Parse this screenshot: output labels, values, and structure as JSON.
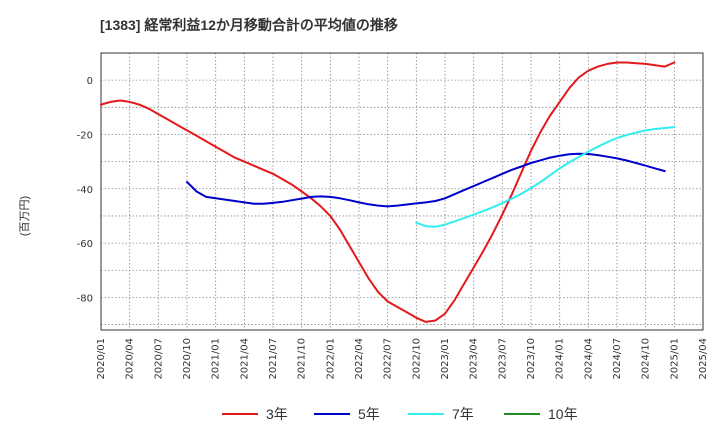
{
  "title": "[1383]  経常利益12か月移動合計の平均値の推移",
  "y_unit": "(百万円)",
  "colors": {
    "3y": "#e31a1c",
    "5y": "#0000cc",
    "7y": "#33eeee",
    "10y": "#228b22",
    "grid": "#888888",
    "frame": "#333333"
  },
  "chart_data": {
    "type": "line",
    "title": "[1383]  経常利益12か月移動合計の平均値の推移",
    "ylabel": "(百万円)",
    "xlabel": "",
    "ylim": [
      -92,
      10
    ],
    "xlim": [
      "2020-01",
      "2025-04"
    ],
    "yticks": [
      0,
      -20,
      -40,
      -60,
      -80
    ],
    "xticks": [
      "2020/01",
      "2020/04",
      "2020/07",
      "2020/10",
      "2021/01",
      "2021/04",
      "2021/07",
      "2021/10",
      "2022/01",
      "2022/04",
      "2022/07",
      "2022/10",
      "2023/01",
      "2023/04",
      "2023/07",
      "2023/10",
      "2024/01",
      "2024/04",
      "2024/07",
      "2024/10",
      "2025/01",
      "2025/04"
    ],
    "grid": true,
    "legend_position": "bottom",
    "series": [
      {
        "name": "3年",
        "color": "#e31a1c",
        "points": [
          [
            "2020-01",
            -9
          ],
          [
            "2020-02",
            -8
          ],
          [
            "2020-03",
            -7.5
          ],
          [
            "2020-04",
            -8
          ],
          [
            "2020-05",
            -9
          ],
          [
            "2020-06",
            -10.5
          ],
          [
            "2020-07",
            -12.5
          ],
          [
            "2020-08",
            -14.5
          ],
          [
            "2020-09",
            -16.5
          ],
          [
            "2020-10",
            -18.5
          ],
          [
            "2020-11",
            -20.5
          ],
          [
            "2020-12",
            -22.5
          ],
          [
            "2021-01",
            -24.5
          ],
          [
            "2021-02",
            -26.5
          ],
          [
            "2021-03",
            -28.5
          ],
          [
            "2021-04",
            -30
          ],
          [
            "2021-05",
            -31.5
          ],
          [
            "2021-06",
            -33
          ],
          [
            "2021-07",
            -34.5
          ],
          [
            "2021-08",
            -36.5
          ],
          [
            "2021-09",
            -38.5
          ],
          [
            "2021-10",
            -41
          ],
          [
            "2021-11",
            -43.5
          ],
          [
            "2021-12",
            -46.5
          ],
          [
            "2022-01",
            -50
          ],
          [
            "2022-02",
            -55
          ],
          [
            "2022-03",
            -61
          ],
          [
            "2022-04",
            -67
          ],
          [
            "2022-05",
            -73
          ],
          [
            "2022-06",
            -78
          ],
          [
            "2022-07",
            -81.5
          ],
          [
            "2022-08",
            -83.5
          ],
          [
            "2022-09",
            -85.5
          ],
          [
            "2022-10",
            -87.5
          ],
          [
            "2022-11",
            -89
          ],
          [
            "2022-12",
            -88.5
          ],
          [
            "2023-01",
            -86
          ],
          [
            "2023-02",
            -81
          ],
          [
            "2023-03",
            -75
          ],
          [
            "2023-04",
            -69
          ],
          [
            "2023-05",
            -63
          ],
          [
            "2023-06",
            -56.5
          ],
          [
            "2023-07",
            -49.5
          ],
          [
            "2023-08",
            -42
          ],
          [
            "2023-09",
            -34
          ],
          [
            "2023-10",
            -26
          ],
          [
            "2023-11",
            -19
          ],
          [
            "2023-12",
            -13
          ],
          [
            "2024-01",
            -8
          ],
          [
            "2024-02",
            -3
          ],
          [
            "2024-03",
            1
          ],
          [
            "2024-04",
            3.5
          ],
          [
            "2024-05",
            5
          ],
          [
            "2024-06",
            6
          ],
          [
            "2024-07",
            6.5
          ],
          [
            "2024-08",
            6.5
          ],
          [
            "2024-09",
            6.2
          ],
          [
            "2024-10",
            6
          ],
          [
            "2024-11",
            5.5
          ],
          [
            "2024-12",
            5
          ],
          [
            "2025-01",
            6.5
          ]
        ]
      },
      {
        "name": "5年",
        "color": "#0000cc",
        "points": [
          [
            "2020-10",
            -37.5
          ],
          [
            "2020-11",
            -41
          ],
          [
            "2020-12",
            -43
          ],
          [
            "2021-01",
            -43.5
          ],
          [
            "2021-02",
            -44
          ],
          [
            "2021-03",
            -44.5
          ],
          [
            "2021-04",
            -45
          ],
          [
            "2021-05",
            -45.5
          ],
          [
            "2021-06",
            -45.5
          ],
          [
            "2021-07",
            -45.2
          ],
          [
            "2021-08",
            -44.8
          ],
          [
            "2021-09",
            -44.2
          ],
          [
            "2021-10",
            -43.6
          ],
          [
            "2021-11",
            -43
          ],
          [
            "2021-12",
            -42.8
          ],
          [
            "2022-01",
            -43
          ],
          [
            "2022-02",
            -43.5
          ],
          [
            "2022-03",
            -44.2
          ],
          [
            "2022-04",
            -45
          ],
          [
            "2022-05",
            -45.7
          ],
          [
            "2022-06",
            -46.2
          ],
          [
            "2022-07",
            -46.5
          ],
          [
            "2022-08",
            -46.2
          ],
          [
            "2022-09",
            -45.8
          ],
          [
            "2022-10",
            -45.4
          ],
          [
            "2022-11",
            -45
          ],
          [
            "2022-12",
            -44.5
          ],
          [
            "2023-01",
            -43.5
          ],
          [
            "2023-02",
            -42
          ],
          [
            "2023-03",
            -40.5
          ],
          [
            "2023-04",
            -39
          ],
          [
            "2023-05",
            -37.5
          ],
          [
            "2023-06",
            -36
          ],
          [
            "2023-07",
            -34.5
          ],
          [
            "2023-08",
            -33
          ],
          [
            "2023-09",
            -31.8
          ],
          [
            "2023-10",
            -30.5
          ],
          [
            "2023-11",
            -29.5
          ],
          [
            "2023-12",
            -28.5
          ],
          [
            "2024-01",
            -27.8
          ],
          [
            "2024-02",
            -27.3
          ],
          [
            "2024-03",
            -27.1
          ],
          [
            "2024-04",
            -27.2
          ],
          [
            "2024-05",
            -27.6
          ],
          [
            "2024-06",
            -28.2
          ],
          [
            "2024-07",
            -28.8
          ],
          [
            "2024-08",
            -29.6
          ],
          [
            "2024-09",
            -30.5
          ],
          [
            "2024-10",
            -31.5
          ],
          [
            "2024-11",
            -32.5
          ],
          [
            "2024-12",
            -33.5
          ]
        ]
      },
      {
        "name": "7年",
        "color": "#33eeee",
        "points": [
          [
            "2022-10",
            -52.5
          ],
          [
            "2022-11",
            -53.8
          ],
          [
            "2022-12",
            -54
          ],
          [
            "2023-01",
            -53.2
          ],
          [
            "2023-02",
            -52
          ],
          [
            "2023-03",
            -50.8
          ],
          [
            "2023-04",
            -49.5
          ],
          [
            "2023-05",
            -48.2
          ],
          [
            "2023-06",
            -46.8
          ],
          [
            "2023-07",
            -45.3
          ],
          [
            "2023-08",
            -43.6
          ],
          [
            "2023-09",
            -41.8
          ],
          [
            "2023-10",
            -39.7
          ],
          [
            "2023-11",
            -37.5
          ],
          [
            "2023-12",
            -35
          ],
          [
            "2024-01",
            -32.5
          ],
          [
            "2024-02",
            -30.3
          ],
          [
            "2024-03",
            -28.3
          ],
          [
            "2024-04",
            -26.3
          ],
          [
            "2024-05",
            -24.5
          ],
          [
            "2024-06",
            -22.8
          ],
          [
            "2024-07",
            -21.3
          ],
          [
            "2024-08",
            -20.2
          ],
          [
            "2024-09",
            -19.3
          ],
          [
            "2024-10",
            -18.5
          ],
          [
            "2024-11",
            -18
          ],
          [
            "2024-12",
            -17.6
          ],
          [
            "2025-01",
            -17.3
          ]
        ]
      },
      {
        "name": "10年",
        "color": "#228b22",
        "points": []
      }
    ]
  }
}
